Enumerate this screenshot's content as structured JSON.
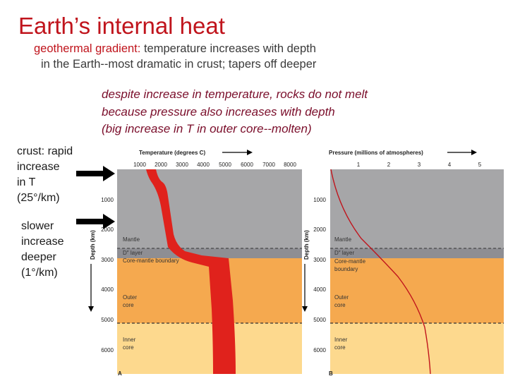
{
  "title": "Earth’s internal heat",
  "subtitle": {
    "term": "geothermal gradient:",
    "line1_rest": " temperature increases with depth",
    "line2": "in the Earth--most dramatic in crust; tapers off deeper"
  },
  "notes": [
    "despite increase in temperature, rocks do not melt",
    "because pressure also increases with depth",
    "(big increase in T in outer core--molten)"
  ],
  "side_labels": {
    "crust": [
      "crust: rapid",
      "increase",
      "in T",
      "(25°/km)"
    ],
    "slower": [
      "slower",
      "increase",
      "deeper",
      "(1°/km)"
    ]
  },
  "figure": {
    "panel_a": {
      "axis_title": "Temperature (degrees C)",
      "ticks": [
        "1000",
        "2000",
        "3000",
        "4000",
        "5000",
        "6000",
        "7000",
        "8000"
      ],
      "letter": "A"
    },
    "panel_b": {
      "axis_title": "Pressure (millions of atmospheres)",
      "ticks": [
        "1",
        "2",
        "3",
        "4",
        "5"
      ],
      "letter": "B"
    },
    "depth_axis_title": "Depth (km)",
    "depth_ticks": [
      "1000",
      "2000",
      "3000",
      "4000",
      "5000",
      "6000"
    ],
    "layers_a": {
      "mantle": "Mantle",
      "d_layer": "D″ layer",
      "cmb": "Core-mantle boundary",
      "outer_core": [
        "Outer",
        "core"
      ],
      "inner_core": [
        "Inner",
        "core"
      ]
    },
    "layers_b": {
      "mantle": "Mantle",
      "d_layer": "D″ layer",
      "cmb": [
        "Core-mantle",
        "boundary"
      ],
      "outer_core": [
        "Outer",
        "core"
      ],
      "inner_core": [
        "Inner",
        "core"
      ]
    },
    "colors": {
      "mantle": "#a6a6a8",
      "outer_core": "#f5a94f",
      "inner_core": "#fdd98e",
      "curve": "#e0221c"
    }
  }
}
